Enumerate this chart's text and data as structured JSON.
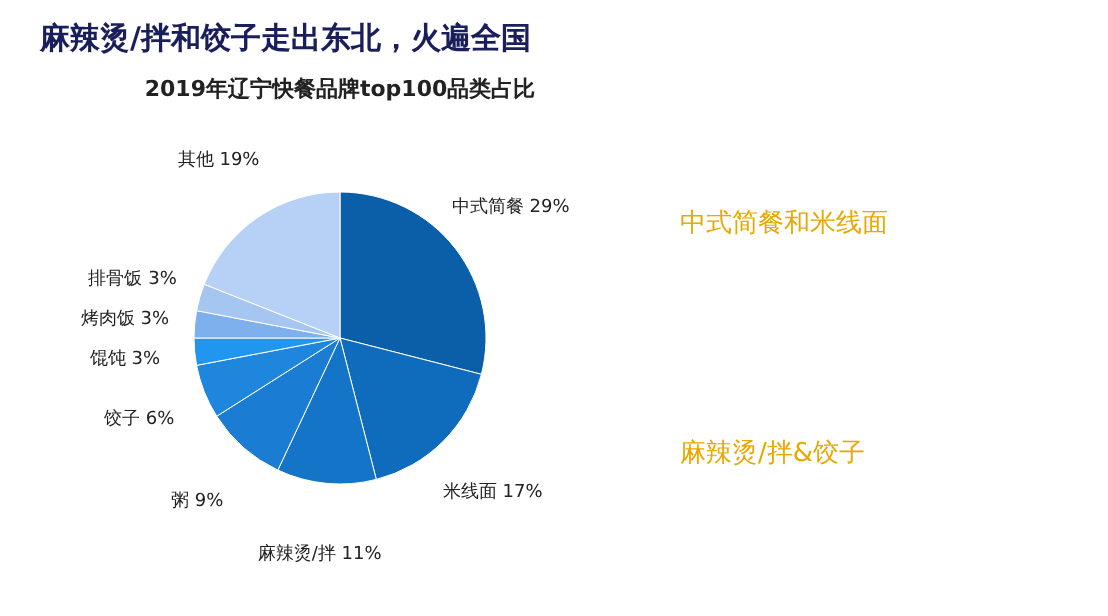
{
  "chart_data": [
    {
      "type": "pie",
      "title": "麻辣烫/拌和饺子走出东北，火遍全国",
      "subtitle": "2019年辽宁快餐品牌top100品类占比",
      "categories": [
        "中式简餐",
        "米线面",
        "麻辣烫/拌",
        "粥",
        "饺子",
        "馄饨",
        "烤肉饭",
        "排骨饭",
        "其他"
      ],
      "values": [
        29,
        17,
        11,
        9,
        6,
        3,
        3,
        3,
        19
      ],
      "value_labels": [
        "29%",
        "17%",
        "11%",
        "9%",
        "6%",
        "3%",
        "3%",
        "3%",
        "19%"
      ],
      "colors": [
        "#0b5ea8",
        "#0f6cbd",
        "#1475c8",
        "#1a7dd3",
        "#1e86dd",
        "#2196ee",
        "#7fb0ee",
        "#a6c6f2",
        "#b6d1f5"
      ]
    },
    {
      "type": "other",
      "annotations": [
        "中式简餐和米线面",
        "麻辣烫/拌&饺子"
      ]
    }
  ]
}
